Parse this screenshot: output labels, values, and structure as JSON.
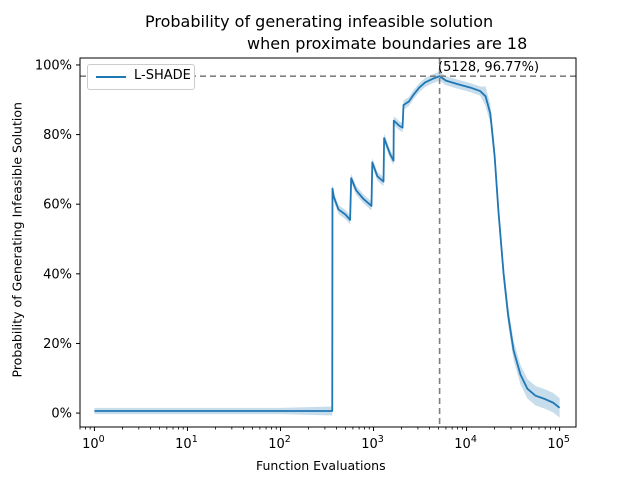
{
  "chart_data": {
    "type": "line",
    "title_line1": "Probability of generating infeasible solution",
    "title_line2": "when proximate boundaries are 18",
    "xlabel": "Function Evaluations",
    "ylabel": "Probability of Generating Infeasible Solution",
    "x_scale": "log",
    "xlim": [
      0.7,
      150000
    ],
    "ylim": [
      -4,
      102
    ],
    "x_ticks": [
      {
        "value": 1,
        "base": "10",
        "exp": "0"
      },
      {
        "value": 10,
        "base": "10",
        "exp": "1"
      },
      {
        "value": 100,
        "base": "10",
        "exp": "2"
      },
      {
        "value": 1000,
        "base": "10",
        "exp": "3"
      },
      {
        "value": 10000,
        "base": "10",
        "exp": "4"
      },
      {
        "value": 100000,
        "base": "10",
        "exp": "5"
      }
    ],
    "y_ticks": [
      {
        "value": 0,
        "label": "0%"
      },
      {
        "value": 20,
        "label": "20%"
      },
      {
        "value": 40,
        "label": "40%"
      },
      {
        "value": 60,
        "label": "60%"
      },
      {
        "value": 80,
        "label": "80%"
      },
      {
        "value": 100,
        "label": "100%"
      }
    ],
    "grid": false,
    "legend_position": "upper-left",
    "series": [
      {
        "name": "L-SHADE",
        "color": "#1f77b4",
        "band_color": "#1f77b4",
        "points": [
          [
            1,
            0.6
          ],
          [
            10,
            0.6
          ],
          [
            100,
            0.6
          ],
          [
            360,
            0.6
          ],
          [
            362,
            64.5
          ],
          [
            375,
            62
          ],
          [
            420,
            58.5
          ],
          [
            500,
            57
          ],
          [
            560,
            55.5
          ],
          [
            575,
            67.5
          ],
          [
            650,
            64
          ],
          [
            780,
            61.5
          ],
          [
            950,
            59.5
          ],
          [
            970,
            72
          ],
          [
            1100,
            68
          ],
          [
            1280,
            66.5
          ],
          [
            1300,
            79
          ],
          [
            1500,
            74.5
          ],
          [
            1640,
            72.5
          ],
          [
            1650,
            84
          ],
          [
            1900,
            82.5
          ],
          [
            2050,
            82
          ],
          [
            2100,
            88.5
          ],
          [
            2400,
            89.5
          ],
          [
            2700,
            91.5
          ],
          [
            3100,
            93.5
          ],
          [
            3600,
            95
          ],
          [
            4300,
            96
          ],
          [
            5128,
            96.77
          ],
          [
            6000,
            95.5
          ],
          [
            8000,
            94.5
          ],
          [
            11000,
            93.5
          ],
          [
            14000,
            92.5
          ],
          [
            16000,
            91
          ],
          [
            18000,
            86
          ],
          [
            20000,
            74
          ],
          [
            22000,
            58
          ],
          [
            25000,
            40
          ],
          [
            28000,
            28
          ],
          [
            32000,
            18
          ],
          [
            38000,
            11
          ],
          [
            45000,
            7
          ],
          [
            55000,
            5
          ],
          [
            70000,
            4
          ],
          [
            85000,
            3
          ],
          [
            100000,
            1.5
          ]
        ]
      }
    ],
    "annotation": {
      "text": "(5128, 96.77%)",
      "x": 5128,
      "y": 96.77
    }
  }
}
